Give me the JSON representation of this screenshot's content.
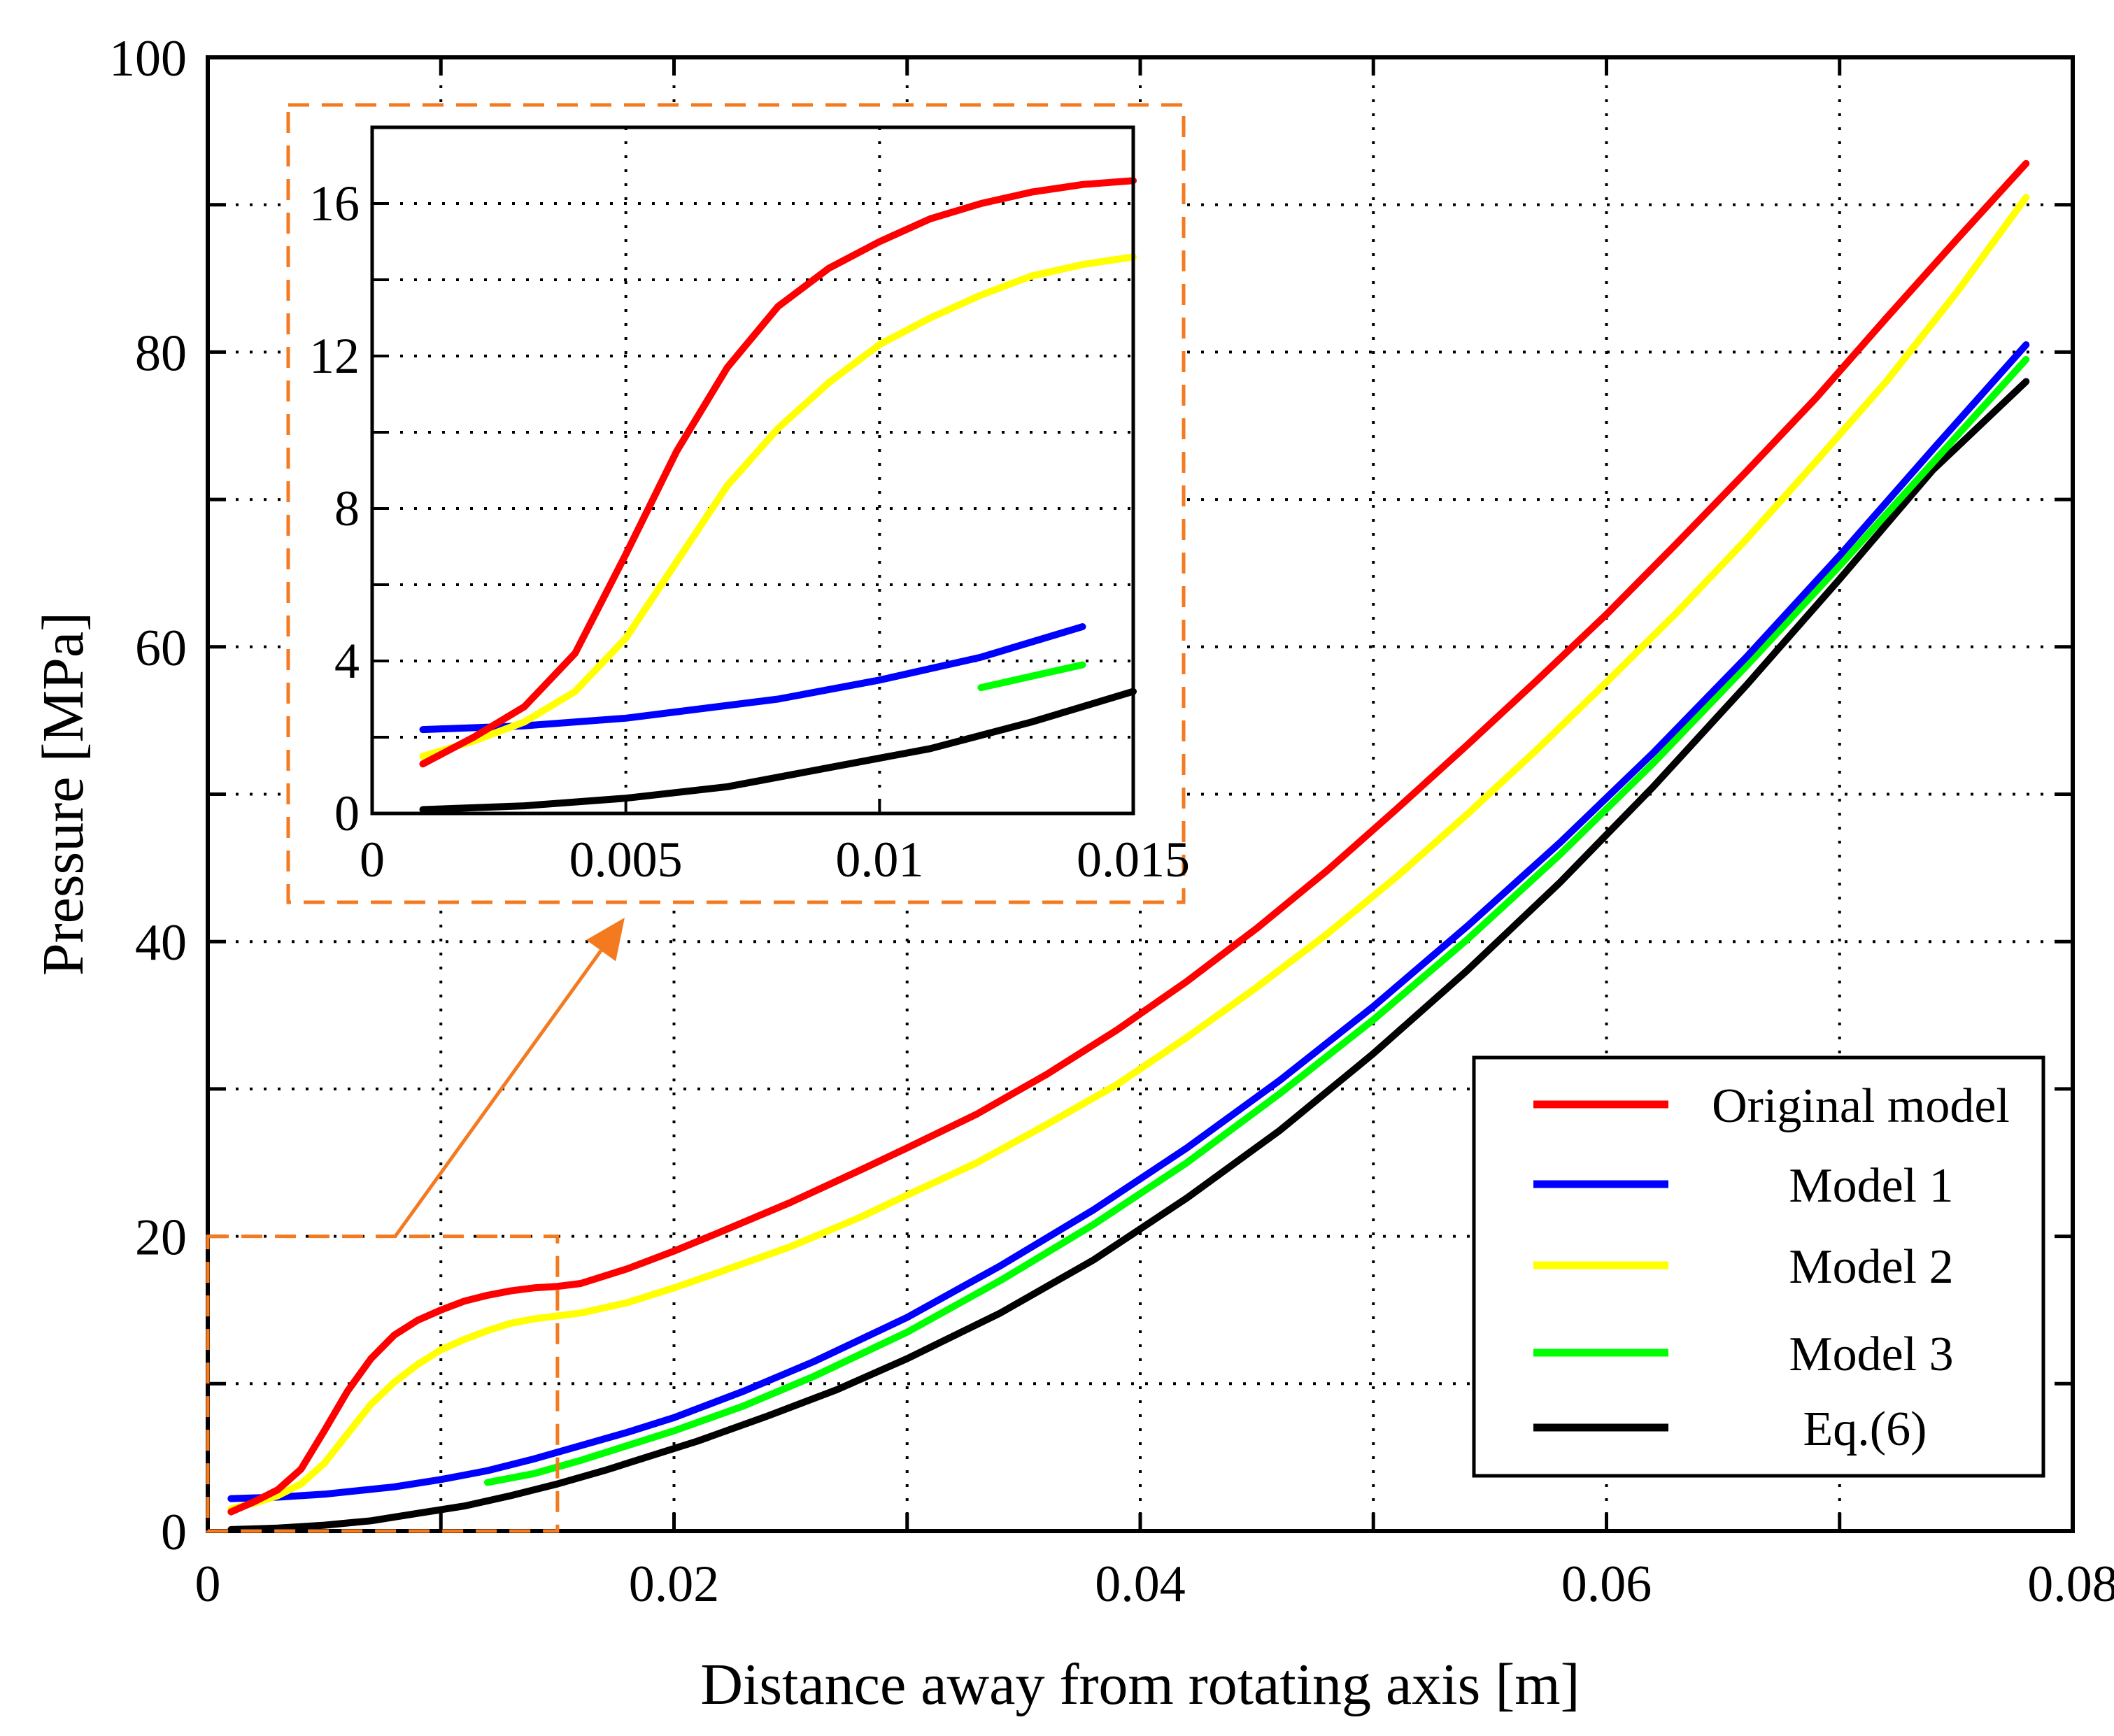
{
  "chart_data": {
    "type": "line",
    "title": "",
    "xlabel": "Distance away from rotating axis [m]",
    "ylabel": "Pressure [MPa]",
    "xlim": [
      0,
      0.08
    ],
    "ylim": [
      0,
      100
    ],
    "xticks": [
      0,
      0.02,
      0.04,
      0.06,
      0.08
    ],
    "xtick_labels": [
      "0",
      "0.02",
      "0.04",
      "0.06",
      "0.08"
    ],
    "yticks": [
      0,
      20,
      40,
      60,
      80,
      100
    ],
    "ytick_labels": [
      "0",
      "20",
      "40",
      "60",
      "80",
      "100"
    ],
    "grid": true,
    "legend_position": "bottom-right",
    "series": [
      {
        "name": "Original model",
        "color": "#ff0000",
        "x": [
          0.001,
          0.002,
          0.003,
          0.004,
          0.005,
          0.006,
          0.007,
          0.008,
          0.009,
          0.01,
          0.011,
          0.012,
          0.013,
          0.014,
          0.015,
          0.016,
          0.018,
          0.02,
          0.022,
          0.025,
          0.028,
          0.03,
          0.033,
          0.036,
          0.039,
          0.042,
          0.045,
          0.048,
          0.051,
          0.054,
          0.057,
          0.06,
          0.063,
          0.066,
          0.069,
          0.072,
          0.075,
          0.078
        ],
        "y": [
          1.3,
          2.0,
          2.8,
          4.2,
          6.8,
          9.5,
          11.7,
          13.3,
          14.3,
          15.0,
          15.6,
          16.0,
          16.3,
          16.5,
          16.6,
          16.8,
          17.8,
          19.0,
          20.3,
          22.3,
          24.5,
          26.0,
          28.3,
          31.0,
          34.0,
          37.3,
          40.9,
          44.8,
          49.0,
          53.3,
          57.7,
          62.2,
          67.0,
          71.9,
          76.9,
          82.3,
          87.6,
          92.8
        ]
      },
      {
        "name": "Model 1",
        "color": "#0000ff",
        "x": [
          0.001,
          0.003,
          0.005,
          0.008,
          0.01,
          0.012,
          0.014,
          0.016,
          0.018,
          0.02,
          0.023,
          0.026,
          0.03,
          0.034,
          0.038,
          0.042,
          0.046,
          0.05,
          0.054,
          0.058,
          0.062,
          0.066,
          0.07,
          0.074,
          0.078
        ],
        "y": [
          2.2,
          2.3,
          2.5,
          3.0,
          3.5,
          4.1,
          4.9,
          5.8,
          6.7,
          7.7,
          9.5,
          11.5,
          14.5,
          18.0,
          21.8,
          26.0,
          30.6,
          35.6,
          41.0,
          46.7,
          52.8,
          59.3,
          66.2,
          73.4,
          80.5
        ]
      },
      {
        "name": "Model 2",
        "color": "#ffff00",
        "x": [
          0.001,
          0.002,
          0.003,
          0.004,
          0.005,
          0.006,
          0.007,
          0.008,
          0.009,
          0.01,
          0.011,
          0.012,
          0.013,
          0.014,
          0.015,
          0.016,
          0.018,
          0.02,
          0.022,
          0.025,
          0.028,
          0.03,
          0.033,
          0.036,
          0.039,
          0.042,
          0.045,
          0.048,
          0.051,
          0.054,
          0.057,
          0.06,
          0.063,
          0.066,
          0.069,
          0.072,
          0.075,
          0.078
        ],
        "y": [
          1.5,
          1.9,
          2.4,
          3.2,
          4.6,
          6.6,
          8.6,
          10.1,
          11.3,
          12.3,
          13.0,
          13.6,
          14.1,
          14.4,
          14.6,
          14.8,
          15.5,
          16.5,
          17.6,
          19.3,
          21.3,
          22.8,
          25.0,
          27.6,
          30.3,
          33.5,
          36.9,
          40.5,
          44.4,
          48.6,
          53.0,
          57.6,
          62.3,
          67.3,
          72.6,
          78.0,
          84.0,
          90.5
        ]
      },
      {
        "name": "Model 3",
        "color": "#00ff00",
        "x": [
          0.012,
          0.014,
          0.016,
          0.018,
          0.02,
          0.023,
          0.026,
          0.03,
          0.034,
          0.038,
          0.042,
          0.046,
          0.05,
          0.054,
          0.058,
          0.062,
          0.066,
          0.07,
          0.074,
          0.078
        ],
        "y": [
          3.3,
          3.9,
          4.8,
          5.8,
          6.8,
          8.5,
          10.5,
          13.5,
          17.0,
          20.8,
          25.0,
          29.7,
          34.7,
          40.1,
          45.9,
          52.1,
          58.7,
          65.5,
          72.5,
          79.5
        ]
      },
      {
        "name": "Eq.(6)",
        "color": "#000000",
        "x": [
          0.001,
          0.003,
          0.005,
          0.007,
          0.009,
          0.011,
          0.013,
          0.015,
          0.017,
          0.019,
          0.021,
          0.024,
          0.027,
          0.03,
          0.034,
          0.038,
          0.042,
          0.046,
          0.05,
          0.054,
          0.058,
          0.062,
          0.066,
          0.07,
          0.074,
          0.078
        ],
        "y": [
          0.1,
          0.2,
          0.4,
          0.7,
          1.2,
          1.7,
          2.4,
          3.2,
          4.1,
          5.1,
          6.1,
          7.8,
          9.6,
          11.7,
          14.8,
          18.4,
          22.6,
          27.2,
          32.4,
          38.0,
          44.0,
          50.5,
          57.4,
          64.6,
          72.0,
          78.0
        ]
      }
    ],
    "inset": {
      "xlim": [
        0,
        0.015
      ],
      "ylim": [
        0,
        18
      ],
      "xticks": [
        0,
        0.005,
        0.01,
        0.015
      ],
      "xtick_labels": [
        "0",
        "0.005",
        "0.01",
        "0.015"
      ],
      "yticks": [
        0,
        4,
        8,
        12,
        16
      ],
      "ytick_labels": [
        "0",
        "4",
        "8",
        "12",
        "16"
      ],
      "zoom_region": {
        "x": [
          0,
          0.015
        ],
        "y": [
          0,
          20
        ]
      }
    }
  }
}
